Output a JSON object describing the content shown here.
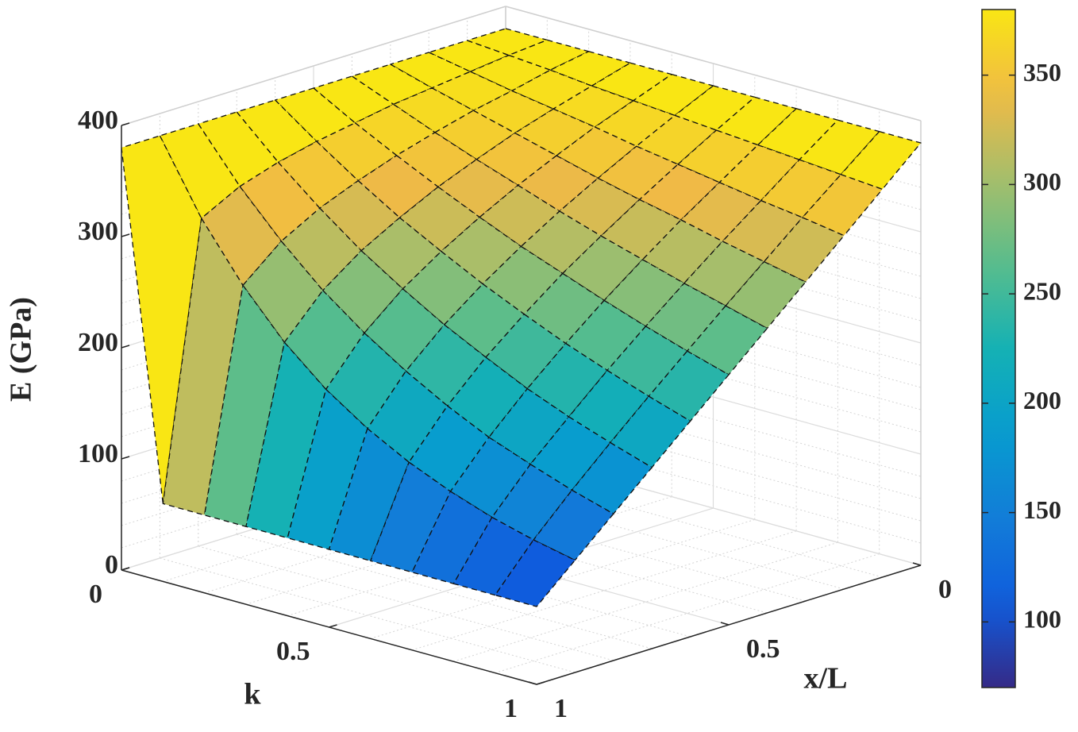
{
  "chart_data": {
    "type": "surface",
    "xlabel": "x/L",
    "ylabel": "k",
    "zlabel": "E (GPa)",
    "x": [
      0,
      0.1,
      0.2,
      0.3,
      0.4,
      0.5,
      0.6,
      0.7,
      0.8,
      0.9,
      1
    ],
    "y": [
      0,
      0.1,
      0.2,
      0.3,
      0.4,
      0.5,
      0.6,
      0.7,
      0.8,
      0.9,
      1
    ],
    "z": [
      [
        380,
        380,
        380,
        380,
        380,
        380,
        380,
        380,
        380,
        380,
        380
      ],
      [
        380,
        377,
        373,
        369,
        365,
        359,
        353,
        345,
        334,
        316,
        70
      ],
      [
        380,
        374,
        366,
        359,
        350,
        340,
        328,
        314,
        295,
        266,
        70
      ],
      [
        380,
        370,
        360,
        349,
        336,
        322,
        305,
        286,
        261,
        225,
        70
      ],
      [
        380,
        367,
        354,
        339,
        323,
        305,
        285,
        262,
        233,
        193,
        70
      ],
      [
        380,
        364,
        347,
        329,
        310,
        289,
        266,
        240,
        209,
        168,
        70
      ],
      [
        380,
        361,
        341,
        320,
        298,
        275,
        249,
        221,
        188,
        148,
        70
      ],
      [
        380,
        358,
        335,
        312,
        287,
        261,
        233,
        203,
        170,
        132,
        70
      ],
      [
        380,
        355,
        329,
        303,
        276,
        248,
        219,
        188,
        156,
        119,
        70
      ],
      [
        380,
        352,
        324,
        295,
        266,
        236,
        206,
        175,
        143,
        109,
        70
      ],
      [
        380,
        349,
        318,
        287,
        256,
        225,
        194,
        163,
        132,
        101,
        70
      ]
    ],
    "xlim": [
      0,
      1
    ],
    "ylim": [
      0,
      1
    ],
    "zlim": [
      0,
      400
    ],
    "xticks": [
      0,
      0.5,
      1
    ],
    "yticks": [
      0,
      0.5,
      1
    ],
    "zticks": [
      0,
      100,
      200,
      300,
      400
    ],
    "grid": true,
    "minor_grid": true,
    "colormap": "parula",
    "clim": [
      70,
      380
    ],
    "cticks": [
      100,
      150,
      200,
      250,
      300,
      350
    ],
    "edge_style": "dashed"
  }
}
